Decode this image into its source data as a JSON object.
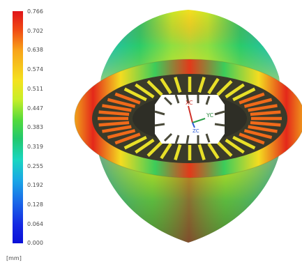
{
  "legend": {
    "ticks": [
      "0.766",
      "0.702",
      "0.638",
      "0.574",
      "0.511",
      "0.447",
      "0.383",
      "0.319",
      "0.255",
      "0.192",
      "0.128",
      "0.064",
      "0.000"
    ],
    "unit": "[mm]"
  },
  "triad": {
    "x_label": "XC",
    "y_label": "YC",
    "z_label": "ZC"
  },
  "colors": {
    "max": "#e0141a",
    "mid": "#52da3c",
    "min": "#0a10d8"
  }
}
